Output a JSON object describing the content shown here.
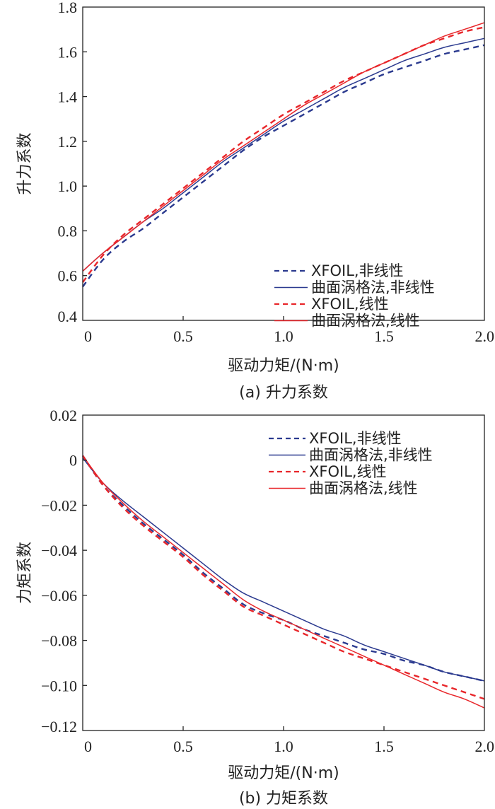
{
  "chart_data": [
    {
      "type": "line",
      "caption": "(a) 升力系数",
      "xlabel": "驱动力矩/(N·m)",
      "ylabel": "升力系数",
      "xlim": [
        0,
        2.0
      ],
      "ylim": [
        0.4,
        1.8
      ],
      "xticks": [
        0,
        0.5,
        1.0,
        1.5,
        2.0
      ],
      "xtick_labels": [
        "0",
        "0.5",
        "1.0",
        "1.5",
        "2.0"
      ],
      "yticks": [
        0.4,
        0.6,
        0.8,
        1.0,
        1.2,
        1.4,
        1.6,
        1.8
      ],
      "ytick_labels": [
        "0.4",
        "0.6",
        "0.8",
        "1.0",
        "1.2",
        "1.4",
        "1.6",
        "1.8"
      ],
      "grid": false,
      "legend_position": "bottom-right",
      "x": [
        0,
        0.1,
        0.2,
        0.3,
        0.4,
        0.5,
        0.6,
        0.7,
        0.8,
        0.9,
        1.0,
        1.1,
        1.2,
        1.3,
        1.4,
        1.5,
        1.6,
        1.7,
        1.8,
        1.9,
        2.0
      ],
      "series": [
        {
          "name": "XFOIL,非线性",
          "color": "#2b3a8f",
          "dash": true,
          "values": [
            0.55,
            0.67,
            0.75,
            0.81,
            0.88,
            0.95,
            1.02,
            1.09,
            1.16,
            1.22,
            1.27,
            1.32,
            1.37,
            1.42,
            1.46,
            1.5,
            1.53,
            1.56,
            1.59,
            1.61,
            1.63
          ]
        },
        {
          "name": "曲面涡格法,非线性",
          "color": "#2b3a8f",
          "dash": false,
          "values": [
            0.62,
            0.7,
            0.77,
            0.84,
            0.9,
            0.97,
            1.04,
            1.11,
            1.17,
            1.23,
            1.29,
            1.34,
            1.39,
            1.44,
            1.48,
            1.52,
            1.56,
            1.59,
            1.62,
            1.64,
            1.66
          ]
        },
        {
          "name": "XFOIL,线性",
          "color": "#e8262a",
          "dash": true,
          "values": [
            0.57,
            0.69,
            0.78,
            0.85,
            0.92,
            0.99,
            1.06,
            1.13,
            1.2,
            1.26,
            1.32,
            1.37,
            1.42,
            1.47,
            1.51,
            1.55,
            1.59,
            1.63,
            1.66,
            1.69,
            1.71
          ]
        },
        {
          "name": "曲面涡格法,线性",
          "color": "#e8262a",
          "dash": false,
          "values": [
            0.62,
            0.7,
            0.77,
            0.84,
            0.91,
            0.98,
            1.05,
            1.12,
            1.18,
            1.24,
            1.3,
            1.36,
            1.41,
            1.46,
            1.51,
            1.55,
            1.59,
            1.63,
            1.67,
            1.7,
            1.73
          ]
        }
      ]
    },
    {
      "type": "line",
      "caption": "(b) 力矩系数",
      "xlabel": "驱动力矩/(N·m)",
      "ylabel": "力矩系数",
      "xlim": [
        0,
        2.0
      ],
      "ylim": [
        -0.12,
        0.02
      ],
      "xticks": [
        0,
        0.5,
        1.0,
        1.5,
        2.0
      ],
      "xtick_labels": [
        "0",
        "0.5",
        "1.0",
        "1.5",
        "2.0"
      ],
      "yticks": [
        -0.12,
        -0.1,
        -0.08,
        -0.06,
        -0.04,
        -0.02,
        0,
        0.02
      ],
      "ytick_labels": [
        "−0.12",
        "−0.10",
        "−0.08",
        "−0.06",
        "−0.04",
        "−0.02",
        "0",
        "0.02"
      ],
      "grid": false,
      "legend_position": "top-right",
      "x": [
        0,
        0.1,
        0.2,
        0.3,
        0.4,
        0.5,
        0.6,
        0.7,
        0.8,
        0.9,
        1.0,
        1.1,
        1.2,
        1.3,
        1.4,
        1.5,
        1.6,
        1.7,
        1.8,
        1.9,
        2.0
      ],
      "series": [
        {
          "name": "XFOIL,非线性",
          "color": "#2b3a8f",
          "dash": true,
          "values": [
            0.002,
            -0.011,
            -0.02,
            -0.028,
            -0.035,
            -0.042,
            -0.05,
            -0.057,
            -0.064,
            -0.068,
            -0.071,
            -0.075,
            -0.078,
            -0.081,
            -0.084,
            -0.086,
            -0.089,
            -0.091,
            -0.094,
            -0.096,
            -0.098
          ]
        },
        {
          "name": "曲面涡格法,非线性",
          "color": "#2b3a8f",
          "dash": false,
          "values": [
            0.001,
            -0.01,
            -0.018,
            -0.025,
            -0.032,
            -0.039,
            -0.046,
            -0.053,
            -0.059,
            -0.063,
            -0.067,
            -0.071,
            -0.075,
            -0.078,
            -0.082,
            -0.085,
            -0.088,
            -0.091,
            -0.094,
            -0.096,
            -0.098
          ]
        },
        {
          "name": "XFOIL,线性",
          "color": "#e8262a",
          "dash": true,
          "values": [
            0.002,
            -0.011,
            -0.021,
            -0.029,
            -0.036,
            -0.043,
            -0.051,
            -0.058,
            -0.065,
            -0.069,
            -0.073,
            -0.077,
            -0.081,
            -0.085,
            -0.088,
            -0.091,
            -0.094,
            -0.097,
            -0.1,
            -0.103,
            -0.106
          ]
        },
        {
          "name": "曲面涡格法,线性",
          "color": "#e8262a",
          "dash": false,
          "values": [
            0.002,
            -0.01,
            -0.019,
            -0.027,
            -0.034,
            -0.041,
            -0.048,
            -0.055,
            -0.062,
            -0.067,
            -0.071,
            -0.075,
            -0.079,
            -0.083,
            -0.087,
            -0.091,
            -0.095,
            -0.099,
            -0.103,
            -0.106,
            -0.11
          ]
        }
      ]
    }
  ]
}
